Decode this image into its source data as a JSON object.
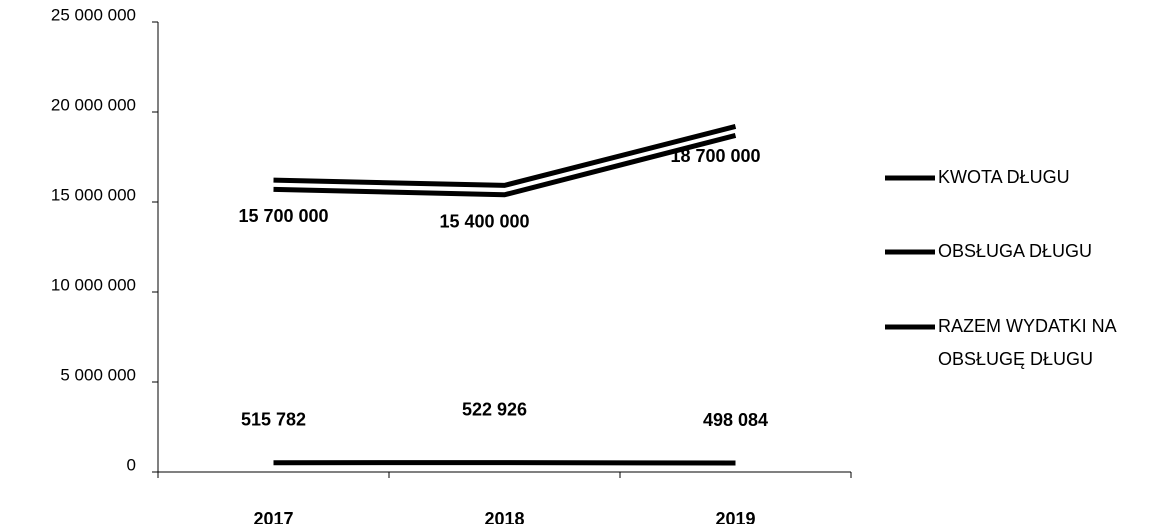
{
  "chart_data": {
    "type": "line",
    "categories": [
      "2017",
      "2018",
      "2019"
    ],
    "series": [
      {
        "name": "KWOTA DŁUGU",
        "color": "#000000",
        "values": [
          15700000,
          15400000,
          18700000
        ],
        "value_labels": [
          "15 700 000",
          "15 400 000",
          "18 700 000"
        ]
      },
      {
        "name": "OBSŁUGA DŁUGU",
        "color": "#000000",
        "values": [
          515782,
          522926,
          498084
        ],
        "value_labels": [
          "515 782",
          "522 926",
          "498 084"
        ]
      },
      {
        "name": "RAZEM WYDATKI NA OBSŁUGĘ DŁUGU",
        "color": "#000000",
        "values": [
          16215782,
          15922926,
          19198084
        ]
      }
    ],
    "ylim": [
      0,
      25000000
    ],
    "yticks": [
      0,
      {
        "value": 5000000,
        "label": "5 000 000"
      },
      {
        "value": 10000000,
        "label": "10 000 000"
      },
      {
        "value": 15000000,
        "label": "15 000 000"
      },
      {
        "value": 20000000,
        "label": "20 000 000"
      },
      {
        "value": 25000000,
        "label": "25 000 000"
      }
    ],
    "legend": "right",
    "grid": false
  }
}
